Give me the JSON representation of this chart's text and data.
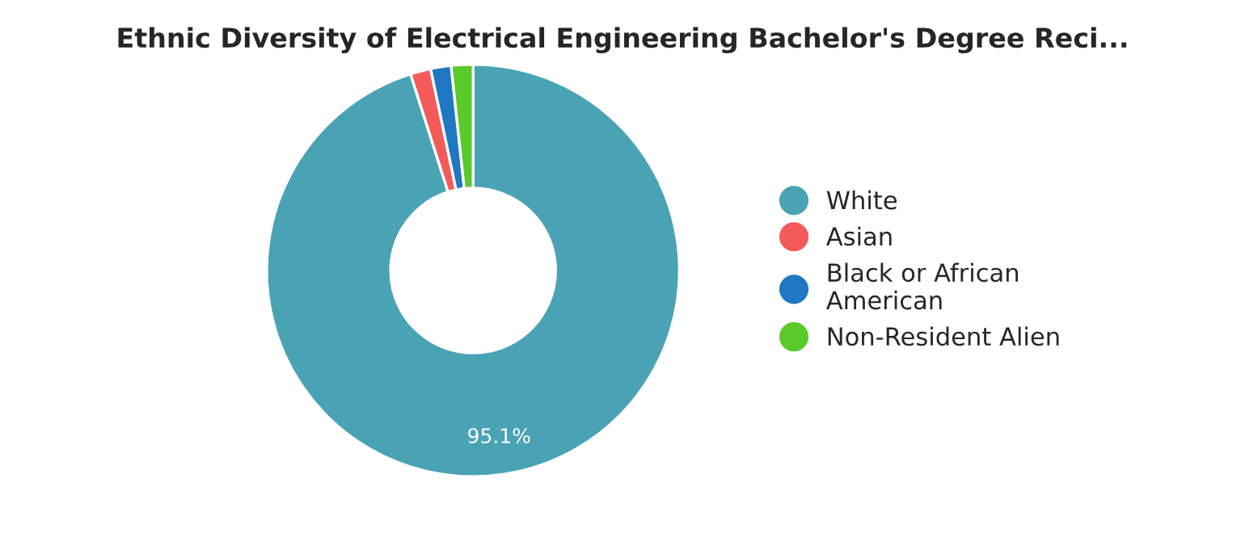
{
  "chart_data": {
    "type": "donut",
    "title": "Ethnic Diversity of Electrical Engineering Bachelor's Degree Reci...",
    "categories": [
      "White",
      "Asian",
      "Black or African\nAmerican",
      "Non-Resident Alien"
    ],
    "values": [
      95.1,
      1.6,
      1.6,
      1.7
    ],
    "colors": [
      "#4aa3b5",
      "#f55a5a",
      "#1f78c1",
      "#5ac92a"
    ],
    "value_labels": [
      "95.1%",
      null,
      null,
      null
    ],
    "legend": "right"
  }
}
